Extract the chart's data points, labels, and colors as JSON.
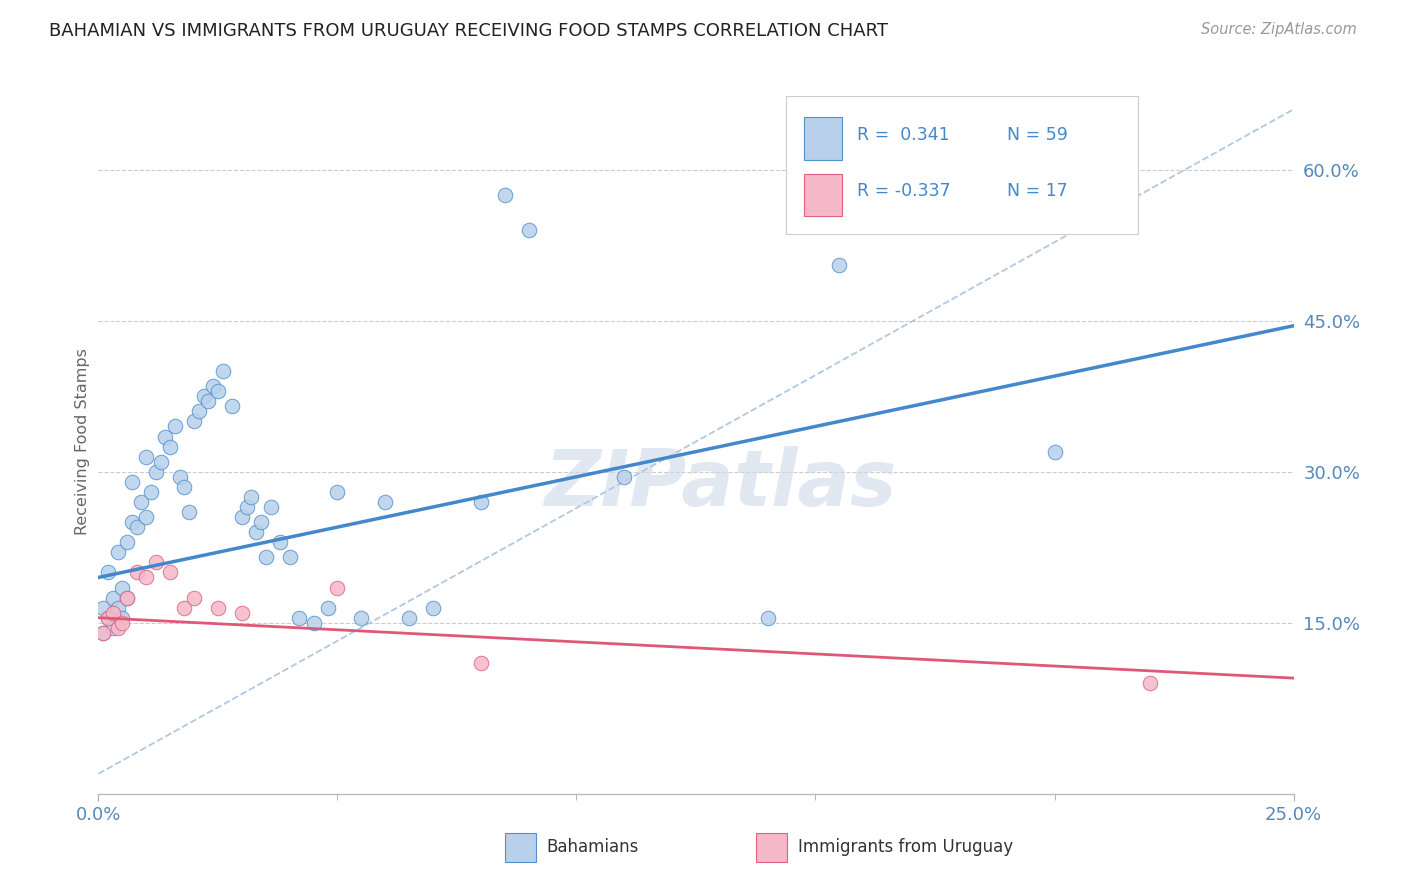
{
  "title": "BAHAMIAN VS IMMIGRANTS FROM URUGUAY RECEIVING FOOD STAMPS CORRELATION CHART",
  "source": "Source: ZipAtlas.com",
  "ylabel_label": "Receiving Food Stamps",
  "legend_r_blue": "R =  0.341",
  "legend_r_pink": "R = -0.337",
  "legend_n_blue": "N = 59",
  "legend_n_pink": "N = 17",
  "label_bahamians": "Bahamians",
  "label_uruguay": "Immigrants from Uruguay",
  "blue_fill": "#b8d0ea",
  "pink_fill": "#f5b8c8",
  "blue_edge": "#5090cc",
  "pink_edge": "#e06080",
  "blue_line": "#4488cc",
  "pink_line": "#e05878",
  "dash_color": "#b0c8e0",
  "title_color": "#222222",
  "axis_tick_color": "#5588bb",
  "ylabel_color": "#666666",
  "watermark_color": "#cdd9e8",
  "grid_color": "#cccccc",
  "legend_text_color": "#4488cc",
  "xlim": [
    0.0,
    0.25
  ],
  "ylim": [
    -0.02,
    0.68
  ],
  "ytick_vals": [
    0.15,
    0.3,
    0.45,
    0.6
  ],
  "xtick_vals": [
    0.0,
    0.25
  ],
  "blue_x": [
    0.001,
    0.001,
    0.002,
    0.002,
    0.003,
    0.003,
    0.004,
    0.004,
    0.005,
    0.005,
    0.006,
    0.006,
    0.007,
    0.007,
    0.008,
    0.009,
    0.01,
    0.01,
    0.011,
    0.012,
    0.013,
    0.014,
    0.015,
    0.016,
    0.017,
    0.018,
    0.019,
    0.02,
    0.021,
    0.022,
    0.023,
    0.024,
    0.025,
    0.026,
    0.028,
    0.03,
    0.031,
    0.032,
    0.033,
    0.034,
    0.035,
    0.036,
    0.038,
    0.04,
    0.042,
    0.045,
    0.048,
    0.05,
    0.055,
    0.06,
    0.065,
    0.07,
    0.08,
    0.085,
    0.09,
    0.11,
    0.14,
    0.155,
    0.2
  ],
  "blue_y": [
    0.14,
    0.165,
    0.155,
    0.2,
    0.145,
    0.175,
    0.165,
    0.22,
    0.155,
    0.185,
    0.175,
    0.23,
    0.25,
    0.29,
    0.245,
    0.27,
    0.255,
    0.315,
    0.28,
    0.3,
    0.31,
    0.335,
    0.325,
    0.345,
    0.295,
    0.285,
    0.26,
    0.35,
    0.36,
    0.375,
    0.37,
    0.385,
    0.38,
    0.4,
    0.365,
    0.255,
    0.265,
    0.275,
    0.24,
    0.25,
    0.215,
    0.265,
    0.23,
    0.215,
    0.155,
    0.15,
    0.165,
    0.28,
    0.155,
    0.27,
    0.155,
    0.165,
    0.27,
    0.575,
    0.54,
    0.295,
    0.155,
    0.505,
    0.32
  ],
  "pink_x": [
    0.001,
    0.002,
    0.003,
    0.004,
    0.005,
    0.006,
    0.008,
    0.01,
    0.012,
    0.015,
    0.018,
    0.02,
    0.025,
    0.03,
    0.05,
    0.08,
    0.22
  ],
  "pink_y": [
    0.14,
    0.155,
    0.16,
    0.145,
    0.15,
    0.175,
    0.2,
    0.195,
    0.21,
    0.2,
    0.165,
    0.175,
    0.165,
    0.16,
    0.185,
    0.11,
    0.09
  ],
  "blue_line_pts": [
    0.0,
    0.25
  ],
  "blue_line_y": [
    0.195,
    0.445
  ],
  "pink_line_pts": [
    0.0,
    0.25
  ],
  "pink_line_y": [
    0.155,
    0.095
  ]
}
